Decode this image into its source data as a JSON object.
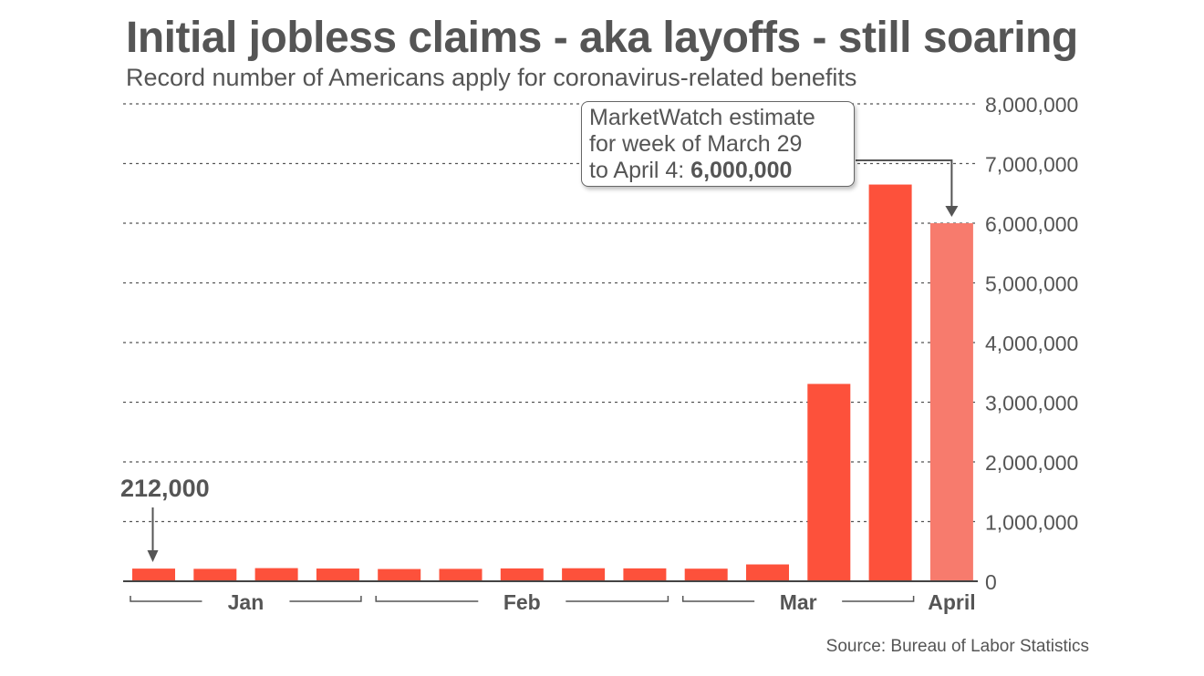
{
  "chart_data": {
    "type": "bar",
    "title": "Initial jobless claims - aka layoffs - still soaring",
    "subtitle": "Record number of Americans apply for coronavirus-related benefits",
    "source": "Source: Bureau of Labor Statistics",
    "ylim": [
      0,
      8000000
    ],
    "yticks": [
      "0",
      "1,000,000",
      "2,000,000",
      "3,000,000",
      "4,000,000",
      "5,000,000",
      "6,000,000",
      "7,000,000",
      "8,000,000"
    ],
    "grid": true,
    "values": [
      212000,
      208000,
      220000,
      213000,
      205000,
      208000,
      215000,
      218000,
      216000,
      211000,
      282000,
      3307000,
      6648000,
      6000000
    ],
    "estimate_flags": [
      false,
      false,
      false,
      false,
      false,
      false,
      false,
      false,
      false,
      false,
      false,
      false,
      false,
      true
    ],
    "month_groups": [
      {
        "label": "Jan",
        "start": 0,
        "end": 3
      },
      {
        "label": "Feb",
        "start": 4,
        "end": 8
      },
      {
        "label": "Mar",
        "start": 9,
        "end": 12
      },
      {
        "label": "April",
        "start": 13,
        "end": 13
      }
    ],
    "annotations": {
      "first_label": "212,000",
      "estimate_line1": "MarketWatch estimate",
      "estimate_line2": "for week of March 29",
      "estimate_line3": "to April 4: ",
      "estimate_value": "6,000,000"
    },
    "colors": {
      "bar": "#fd513b",
      "estimate": "#f77b6d",
      "grid": "#555555",
      "text": "#555555"
    }
  }
}
